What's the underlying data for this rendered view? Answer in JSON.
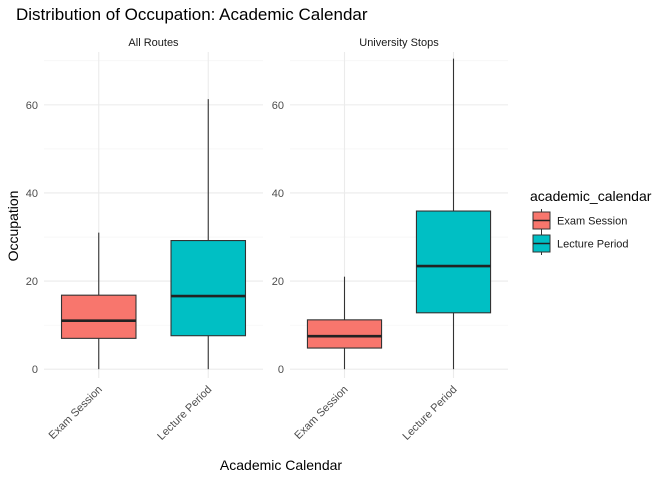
{
  "chart_data": {
    "type": "boxplot",
    "title": "Distribution of Occupation: Academic Calendar",
    "xlabel": "Academic Calendar",
    "ylabel": "Occupation",
    "ylim": [
      -2,
      72
    ],
    "yticks": [
      0,
      20,
      40,
      60
    ],
    "categories": [
      "Exam Session",
      "Lecture Period"
    ],
    "facets": [
      {
        "label": "All Routes",
        "boxes": [
          {
            "category": "Exam Session",
            "min": 0,
            "q1": 7,
            "median": 11,
            "q3": 16.8,
            "max": 31
          },
          {
            "category": "Lecture Period",
            "min": 0,
            "q1": 7.6,
            "median": 16.6,
            "q3": 29.2,
            "max": 61.3
          }
        ]
      },
      {
        "label": "University Stops",
        "boxes": [
          {
            "category": "Exam Session",
            "min": 0,
            "q1": 4.8,
            "median": 7.5,
            "q3": 11.2,
            "max": 21
          },
          {
            "category": "Lecture Period",
            "min": 0,
            "q1": 12.8,
            "median": 23.4,
            "q3": 35.9,
            "max": 70.5
          }
        ]
      }
    ],
    "legend": {
      "title": "academic_calendar",
      "position": "right",
      "entries": [
        {
          "label": "Exam Session",
          "color": "#F8766D"
        },
        {
          "label": "Lecture Period",
          "color": "#00BFC4"
        }
      ]
    },
    "grid": true
  }
}
